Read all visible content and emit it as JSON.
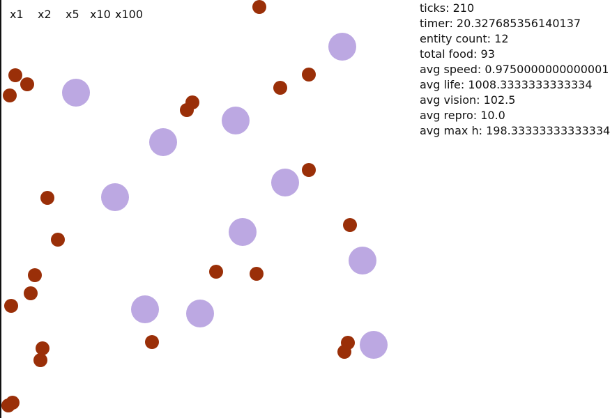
{
  "speed_controls": [
    {
      "label": "x1"
    },
    {
      "label": "x2"
    },
    {
      "label": "x5"
    },
    {
      "label": "x10"
    },
    {
      "label": "x100"
    }
  ],
  "stats": {
    "ticks": "ticks: 210",
    "timer": "timer: 20.327685356140137",
    "entity_count": "entity count: 12",
    "total_food": "total food: 93",
    "avg_speed": "avg speed: 0.9750000000000001",
    "avg_life": "avg life: 1008.3333333333334",
    "avg_vision": "avg vision: 102.5",
    "avg_repro": "avg repro: 10.0",
    "avg_max_h": "avg max h: 198.33333333333334"
  },
  "colors": {
    "food": "#9a2f08",
    "entity": "#bca8e2",
    "background": "#ffffff",
    "text": "#111111"
  }
}
